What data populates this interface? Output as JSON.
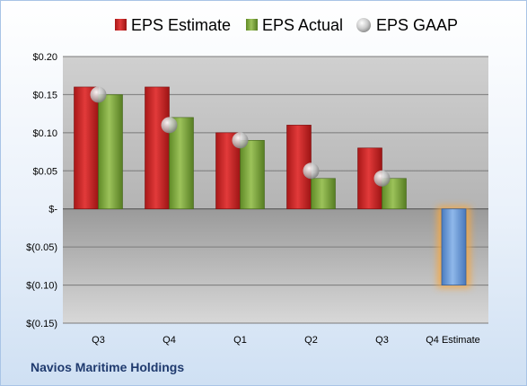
{
  "company_name": "Navios Maritime Holdings",
  "chart_data": {
    "type": "bar",
    "categories": [
      "Q3",
      "Q4",
      "Q1",
      "Q2",
      "Q3",
      "Q4 Estimate"
    ],
    "series": [
      {
        "name": "EPS Estimate",
        "color": "#cc2222",
        "values": [
          0.16,
          0.16,
          0.1,
          0.11,
          0.08,
          null
        ]
      },
      {
        "name": "EPS Actual",
        "color": "#7aa23a",
        "values": [
          0.15,
          0.12,
          0.09,
          0.04,
          0.04,
          null
        ]
      },
      {
        "name": "EPS GAAP",
        "color": "#b8b8b8",
        "marker": "sphere",
        "values": [
          0.15,
          0.11,
          0.09,
          0.05,
          0.04,
          null
        ]
      },
      {
        "name": "Q4 Estimate",
        "color": "#6b9bd8",
        "highlight": "#f5a742",
        "values": [
          null,
          null,
          null,
          null,
          null,
          -0.1
        ]
      }
    ],
    "ylim": [
      -0.15,
      0.2
    ],
    "yticks": [
      0.2,
      0.15,
      0.1,
      0.05,
      0,
      -0.05,
      -0.1,
      -0.15
    ],
    "ytick_labels": [
      "$0.20",
      "$0.15",
      "$0.10",
      "$0.05",
      "$-",
      "$(0.05)",
      "$(0.10)",
      "$(0.15)"
    ],
    "grid": true,
    "legend_position": "top"
  }
}
